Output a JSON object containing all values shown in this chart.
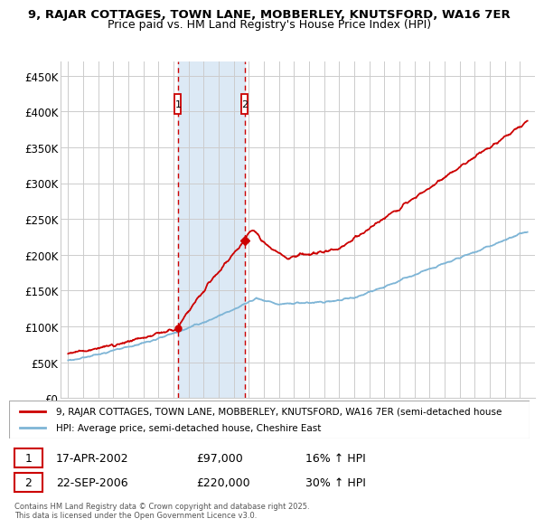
{
  "title1": "9, RAJAR COTTAGES, TOWN LANE, MOBBERLEY, KNUTSFORD, WA16 7ER",
  "title2": "Price paid vs. HM Land Registry's House Price Index (HPI)",
  "legend_line1": "9, RAJAR COTTAGES, TOWN LANE, MOBBERLEY, KNUTSFORD, WA16 7ER (semi-detached house",
  "legend_line2": "HPI: Average price, semi-detached house, Cheshire East",
  "footer": "Contains HM Land Registry data © Crown copyright and database right 2025.\nThis data is licensed under the Open Government Licence v3.0.",
  "sale1_date": "17-APR-2002",
  "sale1_price": "£97,000",
  "sale1_hpi": "16% ↑ HPI",
  "sale1_x": 2002.29,
  "sale1_y": 97000,
  "sale2_date": "22-SEP-2006",
  "sale2_price": "£220,000",
  "sale2_hpi": "30% ↑ HPI",
  "sale2_x": 2006.72,
  "sale2_y": 220000,
  "ylim": [
    0,
    470000
  ],
  "yticks": [
    0,
    50000,
    100000,
    150000,
    200000,
    250000,
    300000,
    350000,
    400000,
    450000
  ],
  "ytick_labels": [
    "£0",
    "£50K",
    "£100K",
    "£150K",
    "£200K",
    "£250K",
    "£300K",
    "£350K",
    "£400K",
    "£450K"
  ],
  "xticks": [
    1995,
    1996,
    1997,
    1998,
    1999,
    2000,
    2001,
    2002,
    2003,
    2004,
    2005,
    2006,
    2007,
    2008,
    2009,
    2010,
    2011,
    2012,
    2013,
    2014,
    2015,
    2016,
    2017,
    2018,
    2019,
    2020,
    2021,
    2022,
    2023,
    2024,
    2025
  ],
  "xlim_left": 1994.5,
  "xlim_right": 2026.0,
  "red_color": "#cc0000",
  "blue_color": "#7eb5d6",
  "shade_color": "#dce9f5",
  "grid_color": "#cccccc",
  "bg_color": "#ffffff"
}
